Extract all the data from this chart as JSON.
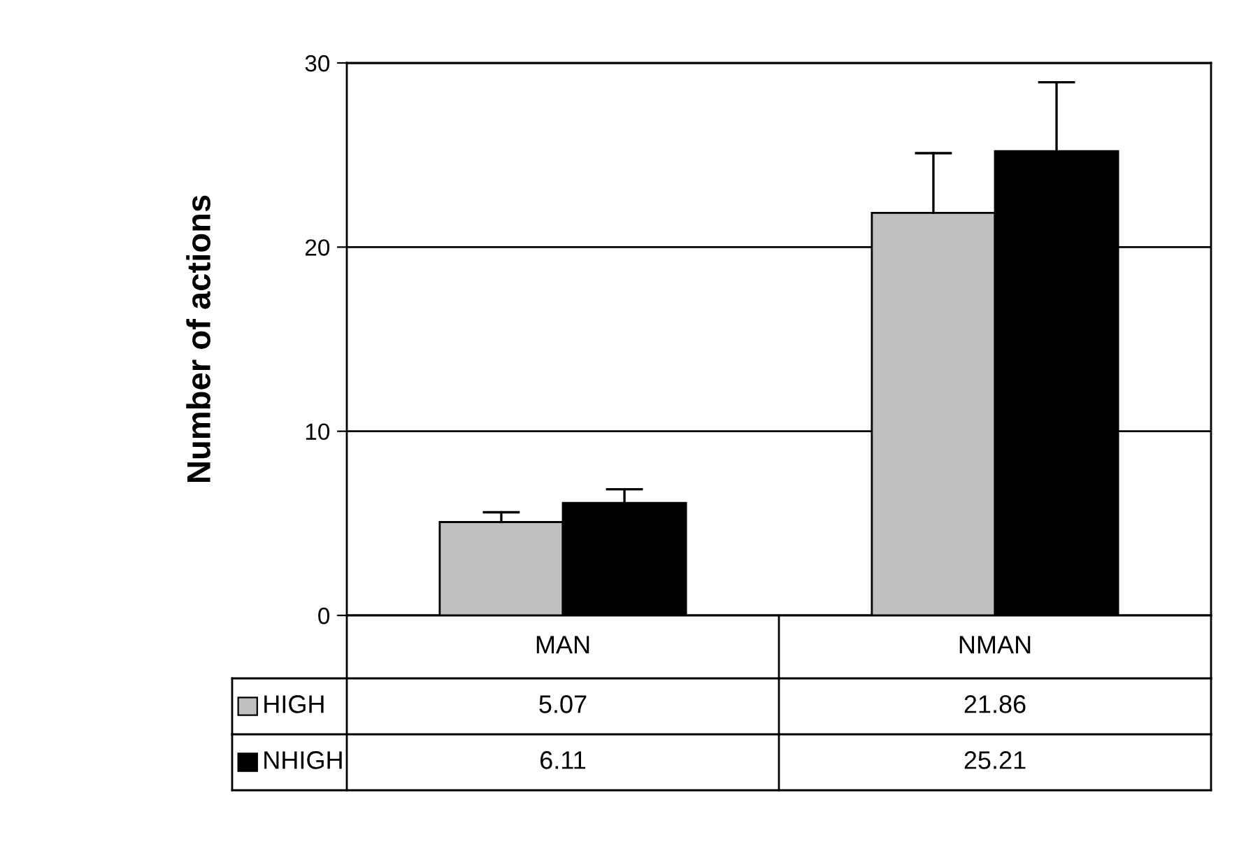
{
  "chart_data": {
    "type": "bar",
    "ylabel": "Number of actions",
    "categories": [
      "MAN",
      "NMAN"
    ],
    "series": [
      {
        "name": "HIGH",
        "color": "#c0c0c0",
        "values": [
          5.07,
          21.86
        ],
        "errors": [
          [
            5.07,
            5.6
          ],
          [
            21.86,
            25.1
          ]
        ]
      },
      {
        "name": "NHIGH",
        "color": "#000000",
        "values": [
          6.11,
          25.21
        ],
        "errors": [
          [
            6.11,
            6.85
          ],
          [
            25.21,
            28.95
          ]
        ]
      }
    ],
    "ylim": [
      0,
      30
    ],
    "yticks": [
      0,
      10,
      20,
      30
    ],
    "grid": "y",
    "legend": "bottom",
    "data_labels": true
  }
}
